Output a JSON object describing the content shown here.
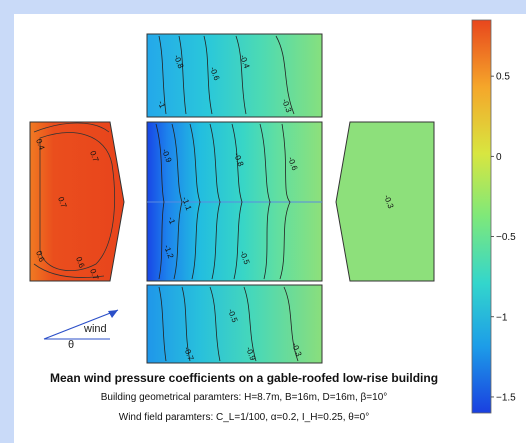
{
  "chart_data": {
    "type": "heatmap",
    "title": "Mean wind pressure coefficients on a gable-roofed low-rise building",
    "geometry_text": "Building geometrical paramters: H=8.7m, B=16m, D=16m, β=10°",
    "wind_field_text": "Wind field paramters: C_L=1/100, α=0.2, I_H=0.25, θ=0°",
    "wind_indicator": {
      "label": "wind",
      "angle_label": "θ"
    },
    "colorbar": {
      "min": -1.6,
      "max": 0.85,
      "ticks": [
        0.5,
        0,
        -0.5,
        -1,
        -1.5
      ],
      "tick_labels": [
        "0.5",
        "0",
        "−0.5",
        "−1",
        "−1.5"
      ],
      "colors": [
        "#1a3fe0",
        "#1d9de8",
        "#33d6cc",
        "#7ee87a",
        "#d8e640",
        "#f5a62a",
        "#e8461d"
      ]
    },
    "panels": [
      {
        "name": "windward-wall",
        "value_range": [
          0.4,
          0.8
        ],
        "contour_labels": [
          "0.4",
          "0.7",
          "0.7",
          "0.6",
          "0.6",
          "0.7"
        ]
      },
      {
        "name": "roof-upper",
        "value_range": [
          -1.1,
          -0.2
        ],
        "contour_labels": [
          "-0.8",
          "-0.6",
          "-0.4",
          "-1",
          "-0.3"
        ]
      },
      {
        "name": "roof-middle",
        "value_range": [
          -1.6,
          -0.3
        ],
        "contour_labels": [
          "-0.9",
          "-1.1",
          "-1",
          "-0.8",
          "-1.2",
          "-0.5",
          "-0.6"
        ]
      },
      {
        "name": "roof-lower",
        "value_range": [
          -1.0,
          -0.3
        ],
        "contour_labels": [
          "-0.5",
          "-0.7",
          "-0.9",
          "-0.3"
        ]
      },
      {
        "name": "leeward-wall",
        "value_range": [
          -0.3,
          -0.3
        ],
        "contour_labels": [
          "-0.3"
        ]
      }
    ]
  }
}
